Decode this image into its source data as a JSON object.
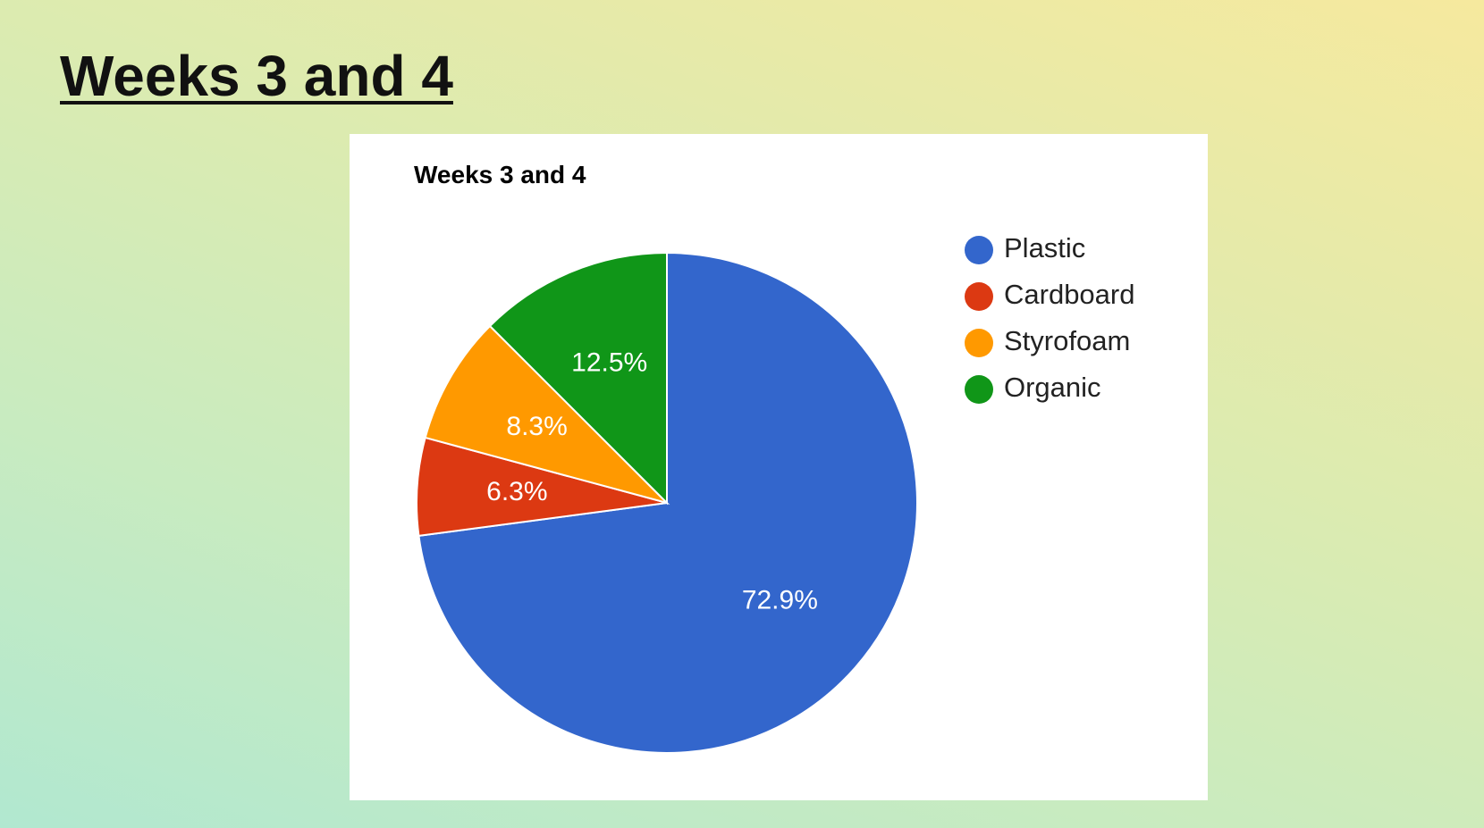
{
  "slide": {
    "title": "Weeks 3 and 4"
  },
  "chart_data": {
    "type": "pie",
    "title": "Weeks 3 and 4",
    "legend_position": "right",
    "slices": [
      {
        "label": "Plastic",
        "value": 72.9,
        "display": "72.9%",
        "color": "#3366cc"
      },
      {
        "label": "Cardboard",
        "value": 6.3,
        "display": "6.3%",
        "color": "#dc3912"
      },
      {
        "label": "Styrofoam",
        "value": 8.3,
        "display": "8.3%",
        "color": "#ff9900"
      },
      {
        "label": "Organic",
        "value": 12.5,
        "display": "12.5%",
        "color": "#109618"
      }
    ]
  }
}
